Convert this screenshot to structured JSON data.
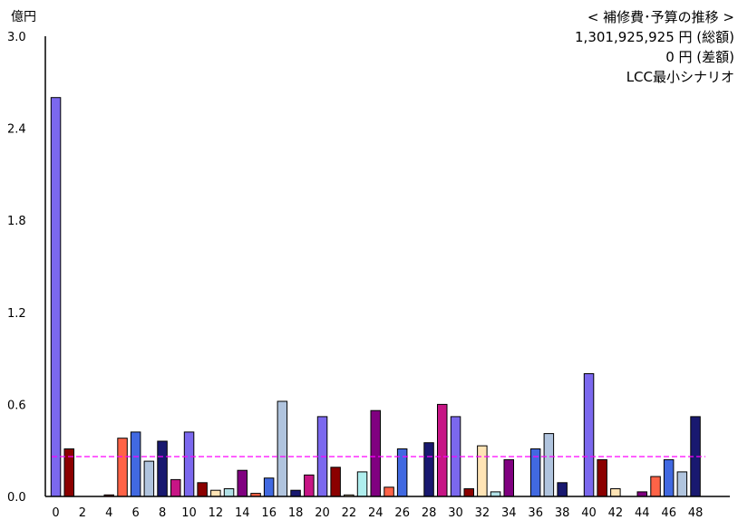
{
  "header": {
    "unit_label": "億円",
    "title": "< 補修費･予算の推移 >",
    "total": "1,301,925,925 円 (総額)",
    "difference": "0 円 (差額)",
    "scenario": "LCC最小シナリオ"
  },
  "chart_data": {
    "type": "bar",
    "ylabel": "億円",
    "ylim": [
      0,
      3.0
    ],
    "yticks": [
      "0.0",
      "0.6",
      "1.2",
      "1.8",
      "2.4",
      "3.0"
    ],
    "ytick_values": [
      0,
      0.6,
      1.2,
      1.8,
      2.4,
      3.0
    ],
    "xtick_labels": [
      "0",
      "2",
      "4",
      "6",
      "8",
      "10",
      "12",
      "14",
      "16",
      "18",
      "20",
      "22",
      "24",
      "26",
      "28",
      "30",
      "32",
      "34",
      "36",
      "38",
      "40",
      "42",
      "44",
      "46",
      "48"
    ],
    "categories": [
      "0",
      "1",
      "2",
      "3",
      "4",
      "5",
      "6",
      "7",
      "8",
      "9",
      "10",
      "11",
      "12",
      "13",
      "14",
      "15",
      "16",
      "17",
      "18",
      "19",
      "20",
      "21",
      "22",
      "23",
      "24",
      "25",
      "26",
      "27",
      "28",
      "29",
      "30",
      "31",
      "32",
      "33",
      "34",
      "35",
      "36",
      "37",
      "38",
      "39",
      "40",
      "41",
      "42",
      "43",
      "44",
      "45",
      "46",
      "47",
      "48"
    ],
    "values": [
      2.6,
      0.31,
      0,
      0,
      0.01,
      0.38,
      0.42,
      0.23,
      0.36,
      0.11,
      0.42,
      0.09,
      0.04,
      0.05,
      0.17,
      0.02,
      0.12,
      0.62,
      0.04,
      0.14,
      0.52,
      0.19,
      0.01,
      0.16,
      0.56,
      0.06,
      0.31,
      0,
      0.35,
      0.6,
      0.52,
      0.05,
      0.33,
      0.03,
      0.24,
      0,
      0.31,
      0.41,
      0.09,
      0,
      0.8,
      0.24,
      0.05,
      0,
      0.03,
      0.13,
      0.24,
      0.16,
      0.52
    ],
    "colors": [
      "#7b68ee",
      "#8b0000",
      "#ffffff",
      "#ffffff",
      "#8b0000",
      "#ff6347",
      "#4169e1",
      "#b0c4de",
      "#191970",
      "#c71585",
      "#7b68ee",
      "#8b0000",
      "#ffe4b5",
      "#b0e0e6",
      "#800080",
      "#ff6347",
      "#4169e1",
      "#b0c4de",
      "#191970",
      "#c71585",
      "#7b68ee",
      "#8b0000",
      "#ffe4b5",
      "#afeeee",
      "#800080",
      "#ff6347",
      "#4169e1",
      "#ffffff",
      "#191970",
      "#c71585",
      "#7b68ee",
      "#8b0000",
      "#ffe4b5",
      "#b0e0e6",
      "#800080",
      "#ffffff",
      "#4169e1",
      "#b0c4de",
      "#191970",
      "#ffffff",
      "#7b68ee",
      "#8b0000",
      "#ffe4b5",
      "#ffffff",
      "#800080",
      "#ff6347",
      "#4169e1",
      "#b0c4de",
      "#191970"
    ],
    "budget_line": 0.26,
    "budget_color": "#ff00ff",
    "grid": false
  }
}
